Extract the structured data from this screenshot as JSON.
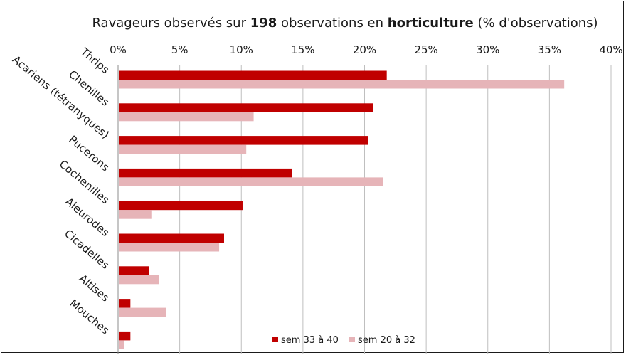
{
  "chart_data": {
    "type": "bar",
    "orientation": "horizontal",
    "title_parts": [
      {
        "text": "Ravageurs observés sur ",
        "bold": false
      },
      {
        "text": "198",
        "bold": true
      },
      {
        "text": " observations en ",
        "bold": false
      },
      {
        "text": "horticulture",
        "bold": true
      },
      {
        "text": "  (% d'observations)",
        "bold": false
      }
    ],
    "categories": [
      "Thrips",
      "Chenilles",
      "Acariens (tétranyques)",
      "Pucerons",
      "Cochenilles",
      "Aleurodes",
      "Cicadelles",
      "Altises",
      "Mouches"
    ],
    "series": [
      {
        "name": "sem 33 à 40",
        "color": "#c00000",
        "values": [
          21.8,
          20.7,
          20.3,
          14.1,
          10.1,
          8.6,
          2.5,
          1.0,
          1.0
        ]
      },
      {
        "name": "sem 20 à 32",
        "color": "#e6b4b8",
        "values": [
          36.2,
          11.0,
          10.4,
          21.5,
          2.7,
          8.2,
          3.3,
          3.9,
          0.5
        ]
      }
    ],
    "x_ticks": [
      "0%",
      "5%",
      "10%",
      "15%",
      "20%",
      "25%",
      "30%",
      "35%",
      "40%"
    ],
    "xlim": [
      0,
      40
    ],
    "x_axis_position": "top",
    "grid": true,
    "legend_position": "bottom"
  }
}
